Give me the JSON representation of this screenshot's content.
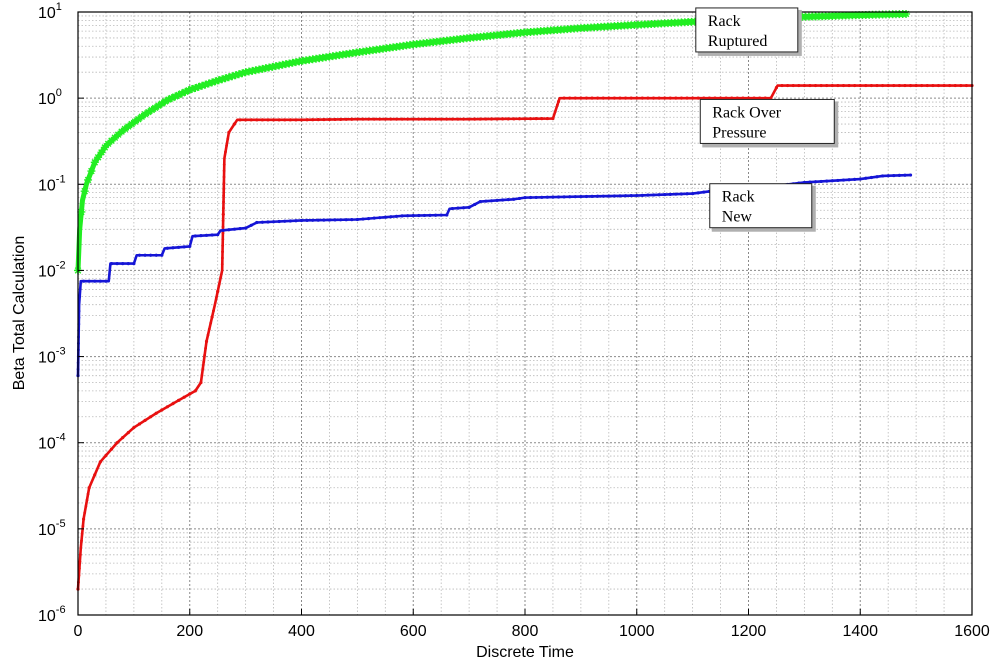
{
  "chart_data": {
    "type": "line",
    "xlabel": "Discrete Time",
    "ylabel": "Beta Total Calculation",
    "xlim": [
      0,
      1600
    ],
    "ylim": [
      1e-06,
      10
    ],
    "yscale": "log",
    "grid": true,
    "x_ticks": [
      "0",
      "200",
      "400",
      "600",
      "800",
      "1000",
      "1200",
      "1400",
      "1600"
    ],
    "y_ticks": [
      {
        "base": "10",
        "exp": "-6"
      },
      {
        "base": "10",
        "exp": "-5"
      },
      {
        "base": "10",
        "exp": "-4"
      },
      {
        "base": "10",
        "exp": "-3"
      },
      {
        "base": "10",
        "exp": "-2"
      },
      {
        "base": "10",
        "exp": "-1"
      },
      {
        "base": "10",
        "exp": "0"
      },
      {
        "base": "10",
        "exp": "1"
      }
    ],
    "series": [
      {
        "id": "ruptured",
        "color": "#22ee22",
        "marker": "star",
        "points": [
          [
            0,
            0.01
          ],
          [
            3,
            0.03
          ],
          [
            8,
            0.065
          ],
          [
            15,
            0.1
          ],
          [
            30,
            0.18
          ],
          [
            50,
            0.28
          ],
          [
            80,
            0.42
          ],
          [
            120,
            0.65
          ],
          [
            160,
            0.95
          ],
          [
            200,
            1.25
          ],
          [
            250,
            1.6
          ],
          [
            300,
            2.0
          ],
          [
            400,
            2.7
          ],
          [
            500,
            3.4
          ],
          [
            600,
            4.2
          ],
          [
            700,
            5.0
          ],
          [
            800,
            5.8
          ],
          [
            900,
            6.5
          ],
          [
            1000,
            7.1
          ],
          [
            1100,
            7.7
          ],
          [
            1200,
            8.3
          ],
          [
            1300,
            8.8
          ],
          [
            1400,
            9.2
          ],
          [
            1485,
            9.5
          ]
        ]
      },
      {
        "id": "overpressure",
        "color": "#e81010",
        "marker": "dot",
        "points": [
          [
            0,
            2e-06
          ],
          [
            5,
            6e-06
          ],
          [
            10,
            1.3e-05
          ],
          [
            20,
            3e-05
          ],
          [
            40,
            6e-05
          ],
          [
            70,
            0.0001
          ],
          [
            100,
            0.00015
          ],
          [
            140,
            0.00022
          ],
          [
            180,
            0.00031
          ],
          [
            210,
            0.0004
          ],
          [
            220,
            0.0005
          ],
          [
            230,
            0.0015
          ],
          [
            245,
            0.004
          ],
          [
            258,
            0.01
          ],
          [
            262,
            0.2
          ],
          [
            270,
            0.4
          ],
          [
            285,
            0.56
          ],
          [
            400,
            0.56
          ],
          [
            500,
            0.57
          ],
          [
            600,
            0.57
          ],
          [
            700,
            0.57
          ],
          [
            850,
            0.58
          ],
          [
            862,
            1.0
          ],
          [
            1000,
            1.0
          ],
          [
            1240,
            1.0
          ],
          [
            1252,
            1.4
          ],
          [
            1400,
            1.4
          ],
          [
            1600,
            1.4
          ]
        ]
      },
      {
        "id": "new",
        "color": "#1515d6",
        "marker": "dot",
        "points": [
          [
            0,
            0.0006
          ],
          [
            2,
            0.004
          ],
          [
            5,
            0.0075
          ],
          [
            55,
            0.0075
          ],
          [
            58,
            0.012
          ],
          [
            100,
            0.012
          ],
          [
            105,
            0.015
          ],
          [
            150,
            0.015
          ],
          [
            155,
            0.018
          ],
          [
            200,
            0.019
          ],
          [
            205,
            0.025
          ],
          [
            250,
            0.026
          ],
          [
            255,
            0.029
          ],
          [
            300,
            0.031
          ],
          [
            320,
            0.036
          ],
          [
            400,
            0.038
          ],
          [
            500,
            0.039
          ],
          [
            580,
            0.043
          ],
          [
            660,
            0.044
          ],
          [
            665,
            0.052
          ],
          [
            700,
            0.054
          ],
          [
            720,
            0.063
          ],
          [
            780,
            0.067
          ],
          [
            800,
            0.07
          ],
          [
            900,
            0.072
          ],
          [
            1000,
            0.074
          ],
          [
            1100,
            0.078
          ],
          [
            1150,
            0.086
          ],
          [
            1200,
            0.09
          ],
          [
            1250,
            0.096
          ],
          [
            1300,
            0.105
          ],
          [
            1400,
            0.115
          ],
          [
            1440,
            0.125
          ],
          [
            1490,
            0.128
          ]
        ]
      }
    ],
    "annotations": [
      {
        "id": "ruptured",
        "lines": [
          "Rack",
          "Ruptured"
        ],
        "anchor": [
          1120,
          9.0
        ]
      },
      {
        "id": "overpressure",
        "lines": [
          "Rack Over",
          "Pressure"
        ],
        "anchor": [
          1128,
          0.78
        ]
      },
      {
        "id": "new",
        "lines": [
          "Rack",
          "New"
        ],
        "anchor": [
          1145,
          0.082
        ]
      }
    ]
  }
}
